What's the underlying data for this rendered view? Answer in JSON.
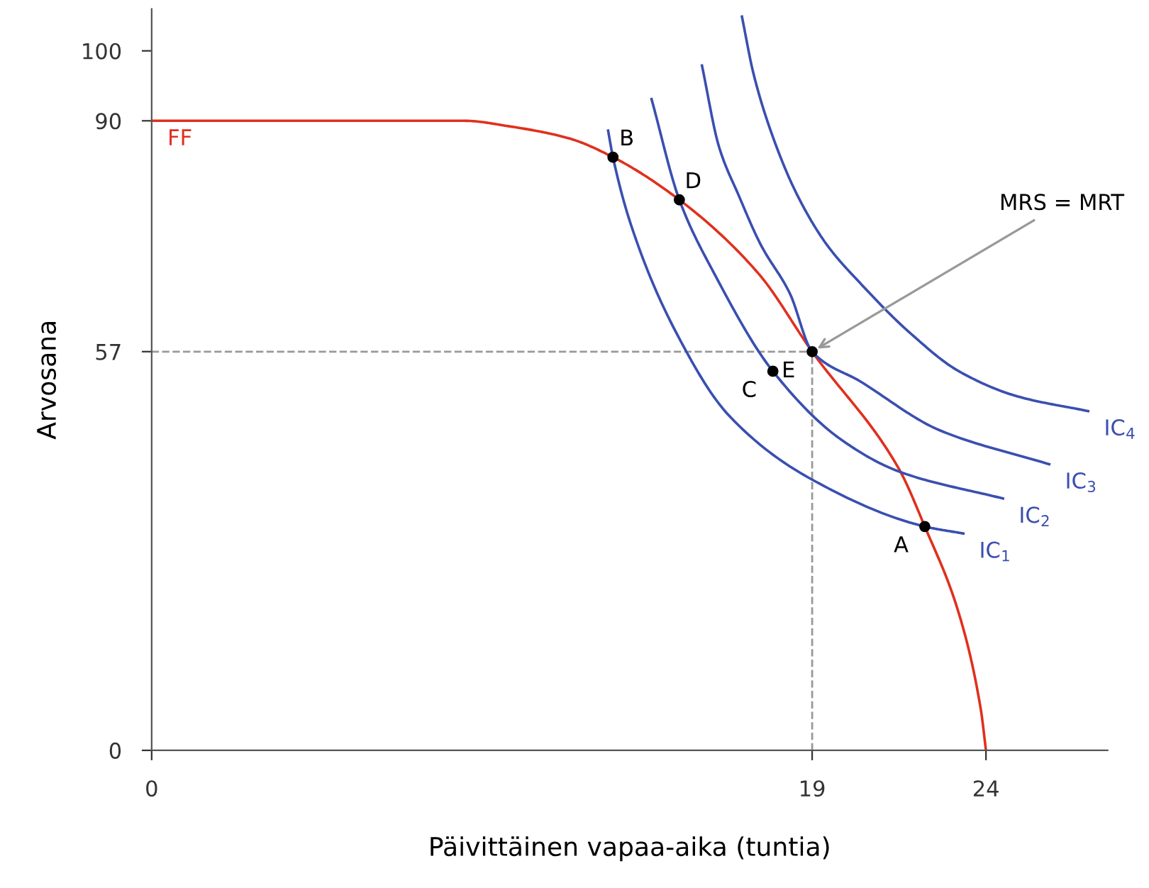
{
  "chart_data": {
    "type": "line",
    "xlabel": "Päivittäinen vapaa-aika (tuntia)",
    "ylabel": "Arvosana",
    "xlim": [
      0,
      27.5
    ],
    "ylim": [
      0,
      106
    ],
    "xticks": [
      0,
      19,
      24
    ],
    "yticks": [
      0,
      57,
      90,
      100
    ],
    "grid": false,
    "legend": false,
    "marker": "none",
    "line_style": "solid",
    "series": [
      {
        "name": "FF",
        "color": "#e0301e",
        "x": [
          24,
          23.85,
          23.2,
          22.24,
          21.5,
          19,
          17.45,
          15.18,
          13.27,
          12,
          10.3,
          9,
          0
        ],
        "values": [
          0,
          5.9,
          19.9,
          32,
          40.2,
          57,
          68.2,
          78.7,
          84.8,
          87.5,
          89.2,
          90,
          90
        ]
      },
      {
        "name": "IC$_{1}$",
        "color": "#3a4fb0",
        "x": [
          13.13,
          13.27,
          13.79,
          15.06,
          16.6,
          19.0,
          22.24,
          23.35
        ],
        "values": [
          88.6,
          84.8,
          75.1,
          60.0,
          47.9,
          38.7,
          32.0,
          31.0
        ]
      },
      {
        "name": "IC$_{2}$",
        "color": "#3a4fb0",
        "x": [
          14.38,
          15.18,
          16.18,
          17.87,
          19.84,
          21.53,
          24.49
        ],
        "values": [
          93.1,
          78.7,
          68.2,
          54.2,
          44.4,
          39.8,
          36.0
        ]
      },
      {
        "name": "IC$_{3}$",
        "color": "#3a4fb0",
        "x": [
          15.83,
          16.32,
          16.89,
          17.52,
          18.36,
          19,
          20.4,
          22.65,
          25.82
        ],
        "values": [
          97.9,
          86.3,
          79.3,
          72.3,
          65.3,
          57,
          52.7,
          45.8,
          40.9
        ]
      },
      {
        "name": "IC$_{4}$",
        "color": "#3a4fb0",
        "x": [
          16.98,
          17.31,
          17.87,
          18.58,
          19.42,
          20.4,
          21.81,
          23.22,
          24.91,
          26.94
        ],
        "values": [
          104.9,
          96.8,
          87.7,
          79.3,
          72.3,
          66.7,
          59.7,
          54.2,
          50.6,
          48.5
        ]
      },
      {
        "type": "scatter",
        "color": "#000000",
        "marker": "circle",
        "x": [
          13.27,
          15.18,
          17.87,
          19,
          22.24
        ],
        "values": [
          84.8,
          78.7,
          54.2,
          57,
          32.0
        ]
      }
    ],
    "ref_lines": [
      {
        "axis": "y",
        "value": 57,
        "color": "#999999",
        "line_style": "dashed"
      },
      {
        "axis": "x",
        "value": 19,
        "color": "#999999",
        "line_style": "dashed"
      }
    ],
    "annotations": [
      {
        "text": "B",
        "x": 13.27,
        "y": 84.8
      },
      {
        "text": "D",
        "x": 15.18,
        "y": 78.7
      },
      {
        "text": "E",
        "x": 19,
        "y": 57
      },
      {
        "text": "C",
        "x": 17.87,
        "y": 54.2
      },
      {
        "text": "A",
        "x": 22.24,
        "y": 32.0
      },
      {
        "text": "MRS = MRT",
        "x": 19,
        "y": 57
      }
    ]
  }
}
